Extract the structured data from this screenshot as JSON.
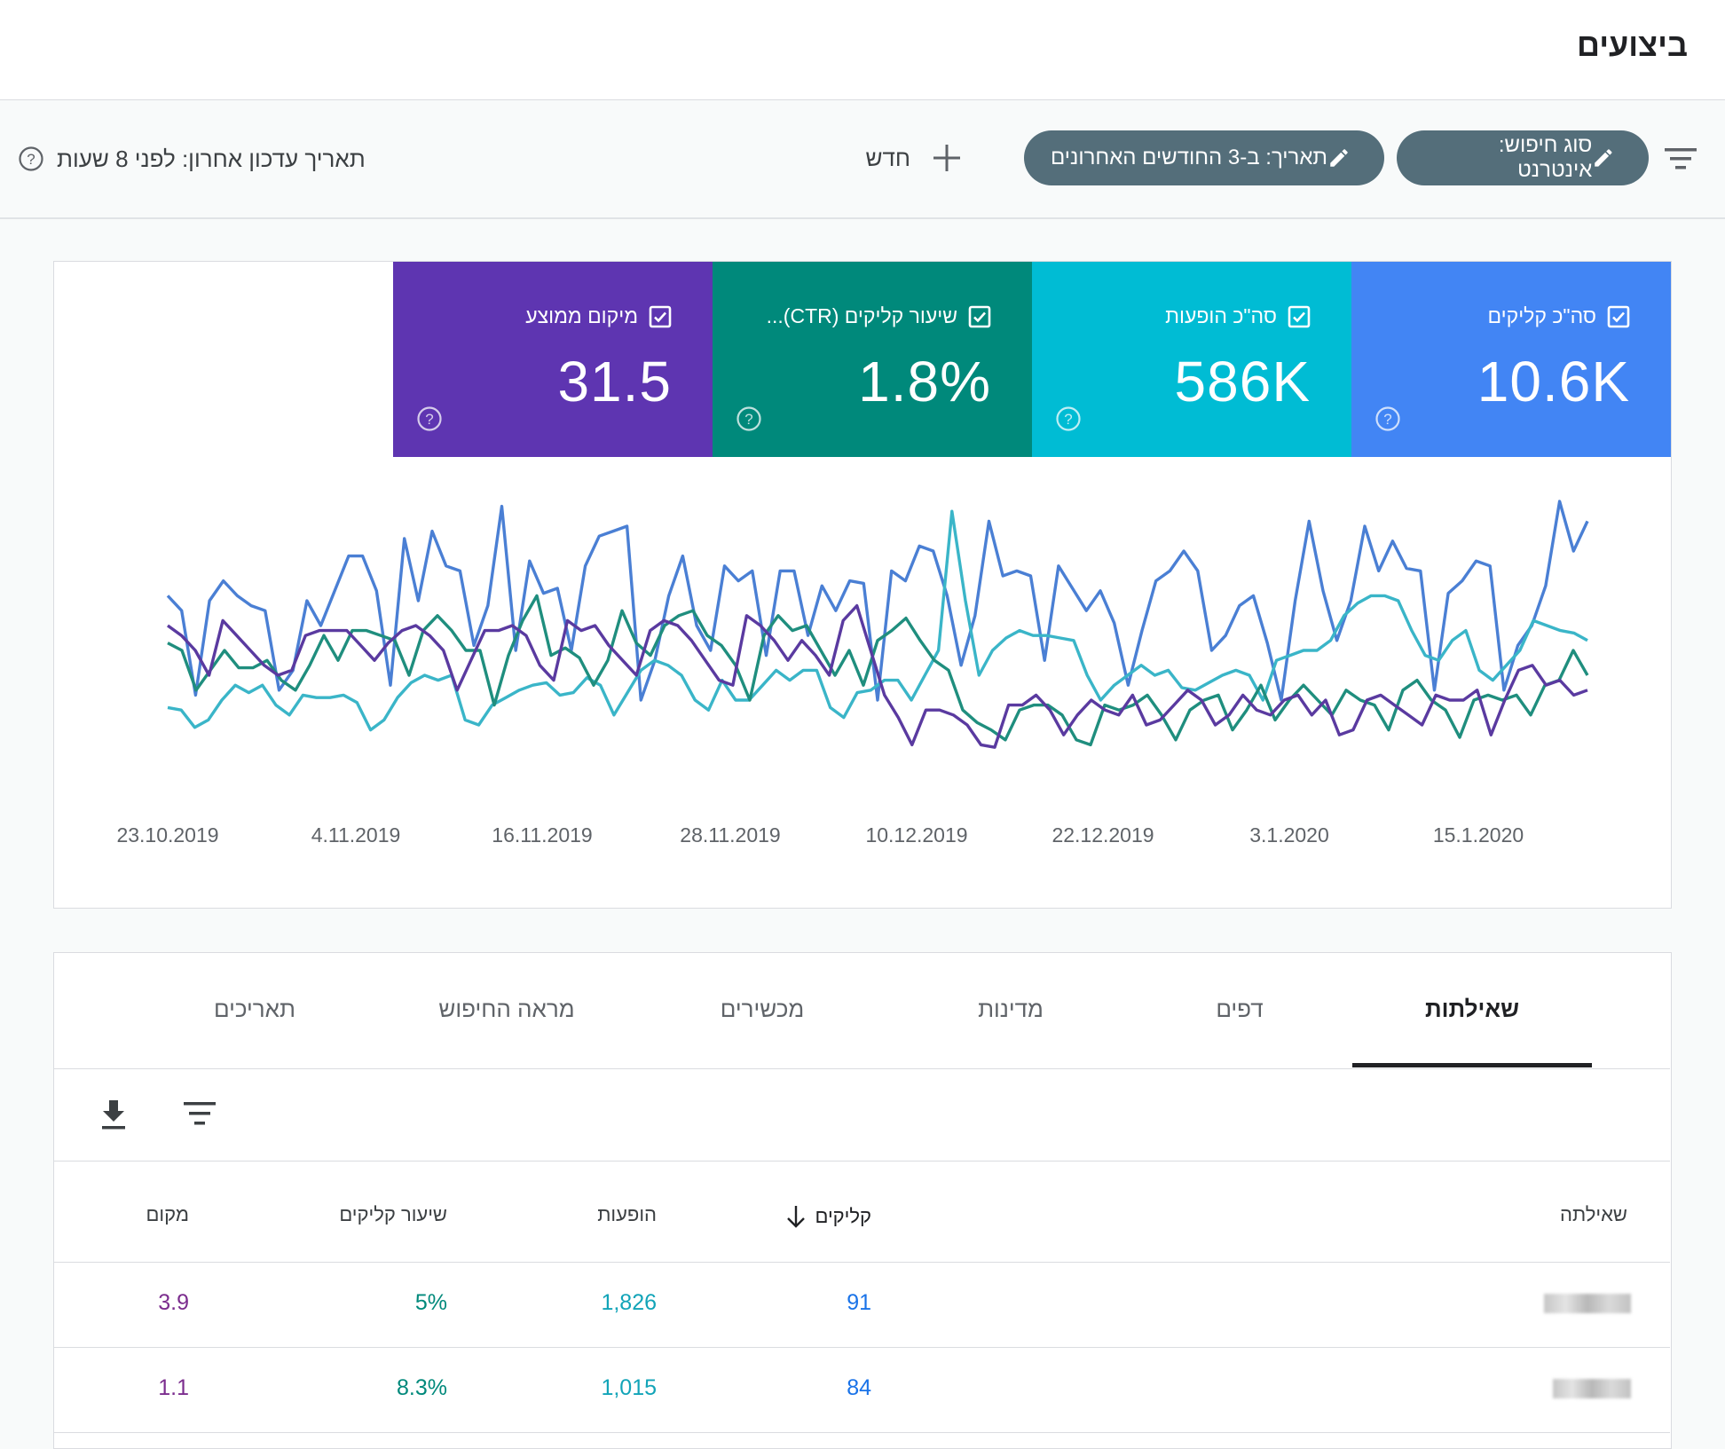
{
  "header": {
    "title": "ביצועים"
  },
  "toolbar": {
    "search_type_chip": "סוג חיפוש: אינטרנט",
    "date_chip": "תאריך: ב-3 החודשים האחרונים",
    "new_label": "חדש",
    "last_updated": "תאריך עדכון אחרון: לפני 8 שעות"
  },
  "metrics": [
    {
      "label": "סה\"כ קליקים",
      "value": "10.6K",
      "color": "#4285f4"
    },
    {
      "label": "סה\"כ הופעות",
      "value": "586K",
      "color": "#00bcd4"
    },
    {
      "label": "שיעור קליקים (CTR)...",
      "value": "1.8%",
      "color": "#00897b"
    },
    {
      "label": "מיקום ממוצע",
      "value": "31.5",
      "color": "#5e35b1"
    }
  ],
  "chart_data": {
    "type": "line",
    "x_ticks": [
      "23.10.2019",
      "4.11.2019",
      "16.11.2019",
      "28.11.2019",
      "10.12.2019",
      "22.12.2019",
      "3.1.2020",
      "15.1.2020"
    ],
    "x_start": "23.10.2019",
    "x_end": "20.1.2020",
    "series": [
      {
        "name": "סה\"כ קליקים",
        "color": "#4a7fd4",
        "values": [
          62,
          56,
          22,
          60,
          68,
          62,
          58,
          56,
          24,
          32,
          60,
          50,
          64,
          78,
          78,
          64,
          26,
          85,
          60,
          88,
          74,
          72,
          42,
          58,
          98,
          40,
          76,
          63,
          65,
          40,
          74,
          86,
          88,
          90,
          20,
          36,
          62,
          78,
          50,
          40,
          74,
          68,
          72,
          38,
          72,
          72,
          46,
          66,
          56,
          68,
          67,
          20,
          72,
          68,
          82,
          80,
          62,
          34,
          54,
          92,
          70,
          72,
          70,
          36,
          74,
          65,
          56,
          64,
          51,
          26,
          48,
          68,
          72,
          80,
          72,
          40,
          46,
          58,
          62,
          43,
          20,
          60,
          92,
          64,
          44,
          60,
          90,
          72,
          84,
          73,
          72,
          24,
          63,
          68,
          76,
          74,
          24,
          42,
          50,
          66,
          100,
          80,
          92
        ]
      },
      {
        "name": "סה\"כ הופעות",
        "color": "#3ab5c8",
        "values": [
          17,
          16,
          9,
          12,
          20,
          26,
          23,
          26,
          18,
          14,
          22,
          21,
          21,
          22,
          19,
          8,
          12,
          21,
          27,
          30,
          28,
          30,
          12,
          10,
          18,
          21,
          24,
          26,
          27,
          22,
          23,
          29,
          26,
          14,
          23,
          32,
          36,
          34,
          30,
          20,
          16,
          28,
          20,
          20,
          26,
          32,
          28,
          32,
          32,
          17,
          13,
          23,
          24,
          28,
          28,
          20,
          30,
          40,
          96,
          60,
          30,
          40,
          45,
          48,
          46,
          46,
          45,
          44,
          30,
          20,
          26,
          30,
          34,
          30,
          32,
          25,
          24,
          27,
          30,
          32,
          30,
          20,
          36,
          38,
          40,
          40,
          44,
          54,
          59,
          62,
          62,
          60,
          48,
          38,
          36,
          44,
          48,
          32,
          28,
          34,
          40,
          52,
          50,
          48,
          47,
          44
        ]
      },
      {
        "name": "שיעור קליקים (CTR)",
        "color": "#1f8e7e",
        "values": [
          43,
          40,
          24,
          32,
          40,
          33,
          33,
          36,
          28,
          24,
          34,
          46,
          36,
          48,
          48,
          46,
          44,
          30,
          48,
          54,
          48,
          40,
          40,
          18,
          38,
          52,
          62,
          38,
          41,
          37,
          26,
          36,
          56,
          43,
          38,
          50,
          54,
          56,
          46,
          42,
          34,
          20,
          46,
          54,
          48,
          50,
          40,
          30,
          40,
          26,
          44,
          48,
          53,
          44,
          36,
          32,
          16,
          11,
          8,
          4,
          16,
          18,
          18,
          14,
          4,
          2,
          18,
          16,
          18,
          22,
          14,
          4,
          16,
          20,
          22,
          8,
          16,
          26,
          12,
          20,
          26,
          20,
          14,
          24,
          20,
          18,
          8,
          24,
          28,
          20,
          16,
          5,
          20,
          22,
          20,
          22,
          14,
          26,
          28,
          40,
          30
        ]
      },
      {
        "name": "מיקום ממוצע",
        "color": "#5a3aa0",
        "values": [
          50,
          46,
          40,
          30,
          52,
          46,
          40,
          34,
          30,
          32,
          46,
          48,
          48,
          48,
          42,
          36,
          43,
          48,
          50,
          46,
          40,
          24,
          36,
          48,
          48,
          50,
          46,
          34,
          28,
          52,
          48,
          50,
          42,
          36,
          30,
          48,
          52,
          50,
          44,
          36,
          28,
          26,
          54,
          50,
          44,
          36,
          44,
          38,
          30,
          52,
          58,
          40,
          22,
          13,
          2,
          16,
          16,
          14,
          10,
          2,
          1,
          18,
          18,
          22,
          16,
          6,
          14,
          20,
          16,
          14,
          22,
          10,
          12,
          18,
          24,
          20,
          10,
          14,
          22,
          16,
          14,
          20,
          22,
          14,
          20,
          6,
          8,
          20,
          22,
          18,
          14,
          10,
          22,
          20,
          20,
          24,
          6,
          20,
          32,
          34,
          26,
          28,
          22,
          24
        ]
      }
    ]
  },
  "tabs": {
    "queries": "שאילתות",
    "pages": "דפים",
    "countries": "מדינות",
    "devices": "מכשירים",
    "search_appearance": "מראה החיפוש",
    "dates": "תאריכים"
  },
  "table": {
    "headers": {
      "query": "שאילתה",
      "clicks": "קליקים",
      "impressions": "הופעות",
      "ctr": "שיעור קליקים",
      "position": "מקום"
    },
    "rows": [
      {
        "query": "",
        "clicks": "91",
        "impressions": "1,826",
        "ctr": "5%",
        "position": "3.9"
      },
      {
        "query": "",
        "clicks": "84",
        "impressions": "1,015",
        "ctr": "8.3%",
        "position": "1.1"
      }
    ]
  }
}
